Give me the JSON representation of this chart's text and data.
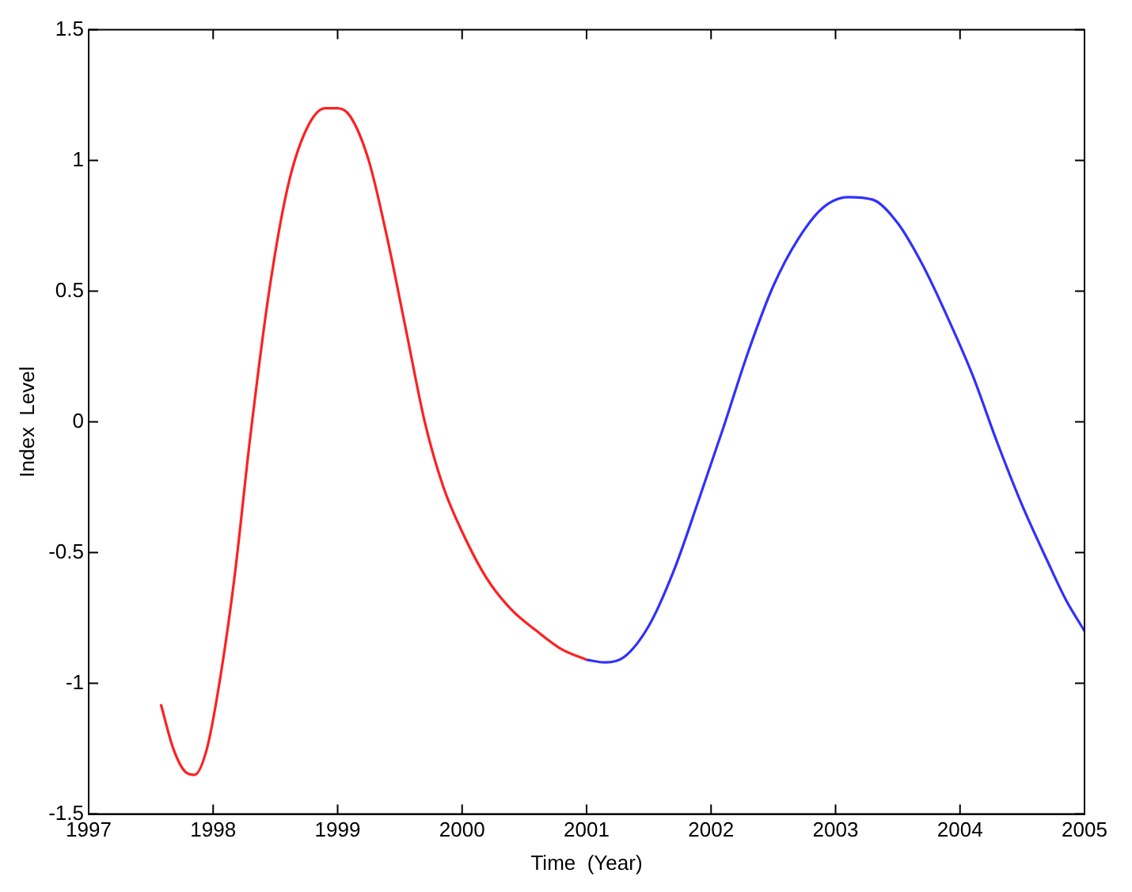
{
  "chart_data": {
    "type": "line",
    "xlabel": "Time  (Year)",
    "ylabel": "Index  Level",
    "xlim": [
      1997,
      2005
    ],
    "ylim": [
      -1.5,
      1.5
    ],
    "xticks": [
      1997,
      1998,
      1999,
      2000,
      2001,
      2002,
      2003,
      2004,
      2005
    ],
    "yticks": [
      -1.5,
      -1,
      -0.5,
      0,
      0.5,
      1,
      1.5
    ],
    "grid": false,
    "legend": false,
    "marker": "none",
    "line_style": "solid",
    "series": [
      {
        "color": "#ff2020",
        "x": [
          1997.58,
          1997.68,
          1997.78,
          1997.85,
          1997.95,
          1998.05,
          1998.17,
          1998.3,
          1998.45,
          1998.6,
          1998.75,
          1998.9,
          1999.0,
          1999.1,
          1999.25,
          1999.4,
          1999.55,
          1999.7,
          1999.85,
          2000.0,
          2000.2,
          2000.4,
          2000.6,
          2000.8,
          2001.0
        ],
        "values": [
          -1.08,
          -1.25,
          -1.34,
          -1.35,
          -1.25,
          -1.0,
          -0.6,
          -0.05,
          0.5,
          0.9,
          1.12,
          1.2,
          1.2,
          1.17,
          1.0,
          0.7,
          0.35,
          0.0,
          -0.25,
          -0.42,
          -0.6,
          -0.72,
          -0.8,
          -0.87,
          -0.91
        ]
      },
      {
        "color": "#3030ff",
        "x": [
          2001.0,
          2001.15,
          2001.3,
          2001.5,
          2001.7,
          2001.9,
          2002.1,
          2002.3,
          2002.5,
          2002.7,
          2002.9,
          2003.1,
          2003.3,
          2003.5,
          2003.7,
          2003.9,
          2004.1,
          2004.3,
          2004.5,
          2004.7,
          2004.85,
          2005.0
        ],
        "values": [
          -0.91,
          -0.92,
          -0.9,
          -0.78,
          -0.57,
          -0.3,
          -0.02,
          0.27,
          0.52,
          0.7,
          0.82,
          0.86,
          0.85,
          0.76,
          0.6,
          0.4,
          0.18,
          -0.08,
          -0.32,
          -0.53,
          -0.68,
          -0.8
        ]
      }
    ]
  }
}
